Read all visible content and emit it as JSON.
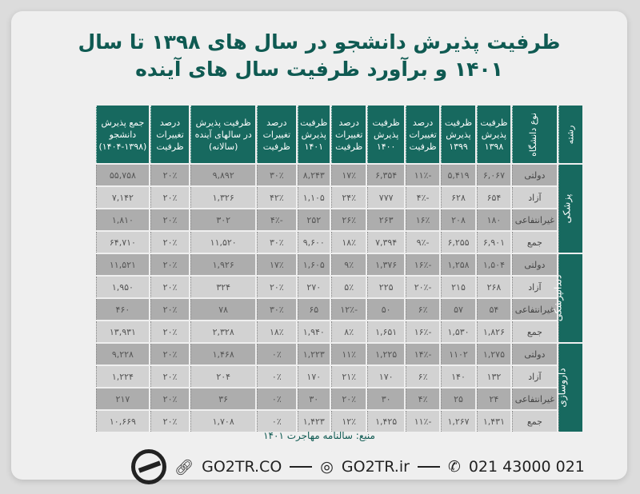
{
  "title": "ظرفیت پذیرش دانشجو در سال های ۱۳۹۸ تا سال ۱۴۰۱ و برآورد ظرفیت سال های آینده",
  "headers": [
    "رشته",
    "نوع دانشگاه",
    "ظرفیت پذیرش ۱۳۹۸",
    "ظرفیت پذیرش ۱۳۹۹",
    "درصد تغییرات ظرفیت",
    "ظرفیت پذیرش ۱۴۰۰",
    "درصد تغییرات ظرفیت",
    "ظرفیت پذیرش ۱۴۰۱",
    "درصد تغییرات ظرفیت",
    "ظرفیت پذیرش در سالهای آینده (سالانه)",
    "درصد تغییرات ظرفیت",
    "جمع پذیرش دانشجو (۱۳۹۸-۱۴۰۴)"
  ],
  "groups": [
    {
      "field": "پزشکی",
      "rows": [
        [
          "دولتی",
          "۶,۰۶۷",
          "۵,۴۱۹",
          "-۱۱٪",
          "۶,۳۵۴",
          "۱۷٪",
          "۸,۲۴۳",
          "۳۰٪",
          "۹,۸۹۲",
          "۲۰٪",
          "۵۵,۷۵۸"
        ],
        [
          "آزاد",
          "۶۵۴",
          "۶۲۸",
          "-۴٪",
          "۷۷۷",
          "۲۴٪",
          "۱,۱۰۵",
          "۴۲٪",
          "۱,۳۲۶",
          "۲۰٪",
          "۷,۱۴۲"
        ],
        [
          "غیرانتفاعی",
          "۱۸۰",
          "۲۰۸",
          "۱۶٪",
          "۲۶۳",
          "۲۶٪",
          "۲۵۲",
          "-۴٪",
          "۳۰۲",
          "۲۰٪",
          "۱,۸۱۰"
        ],
        [
          "جمع",
          "۶,۹۰۱",
          "۶,۲۵۵",
          "-۹٪",
          "۷,۳۹۴",
          "۱۸٪",
          "۹,۶۰۰",
          "۳۰٪",
          "۱۱,۵۲۰",
          "۲۰٪",
          "۶۴,۷۱۰"
        ]
      ]
    },
    {
      "field": "دندانپزشکی",
      "rows": [
        [
          "دولتی",
          "۱,۵۰۴",
          "۱,۲۵۸",
          "-۱۶٪",
          "۱,۳۷۶",
          "۹٪",
          "۱,۶۰۵",
          "۱۷٪",
          "۱,۹۲۶",
          "۲۰٪",
          "۱۱,۵۲۱"
        ],
        [
          "آزاد",
          "۲۶۸",
          "۲۱۵",
          "-۲۰٪",
          "۲۲۵",
          "۵٪",
          "۲۷۰",
          "۲۰٪",
          "۳۲۴",
          "۲۰٪",
          "۱,۹۵۰"
        ],
        [
          "غیرانتفاعی",
          "۵۴",
          "۵۷",
          "۶٪",
          "۵۰",
          "-۱۲٪",
          "۶۵",
          "۳۰٪",
          "۷۸",
          "۲۰٪",
          "۴۶۰"
        ],
        [
          "جمع",
          "۱,۸۲۶",
          "۱,۵۳۰",
          "-۱۶٪",
          "۱,۶۵۱",
          "۸٪",
          "۱,۹۴۰",
          "۱۸٪",
          "۲,۳۲۸",
          "۲۰٪",
          "۱۳,۹۳۱"
        ]
      ]
    },
    {
      "field": "داروسازی",
      "rows": [
        [
          "دولتی",
          "۱,۲۷۵",
          "۱۱۰۲",
          "-۱۴٪",
          "۱,۲۲۵",
          "۱۱٪",
          "۱,۲۲۳",
          "۰٪",
          "۱,۴۶۸",
          "۲۰٪",
          "۹,۲۲۸"
        ],
        [
          "آزاد",
          "۱۳۲",
          "۱۴۰",
          "۶٪",
          "۱۷۰",
          "۲۱٪",
          "۱۷۰",
          "۰٪",
          "۲۰۴",
          "۲۰٪",
          "۱,۲۲۴"
        ],
        [
          "غیرانتفاعی",
          "۲۴",
          "۲۵",
          "۴٪",
          "۳۰",
          "۲۰٪",
          "۳۰",
          "۰٪",
          "۳۶",
          "۲۰٪",
          "۲۱۷"
        ],
        [
          "جمع",
          "۱,۴۳۱",
          "۱,۲۶۷",
          "-۱۱٪",
          "۱,۴۲۵",
          "۱۲٪",
          "۱,۴۲۳",
          "۰٪",
          "۱,۷۰۸",
          "۲۰٪",
          "۱۰,۶۶۹"
        ]
      ]
    }
  ],
  "footer": {
    "source": "منبع: سالنامه مهاجرت ۱۴۰۱",
    "website": "GO2TR.CO",
    "instagram": "GO2TR.ir",
    "phone": "021 43000 021",
    "logo_text": "GO2TR"
  },
  "colors": {
    "accent": "#17695f",
    "title": "#0f5a52",
    "row_dark": "#adadad",
    "row_light": "#d2d2d2"
  }
}
